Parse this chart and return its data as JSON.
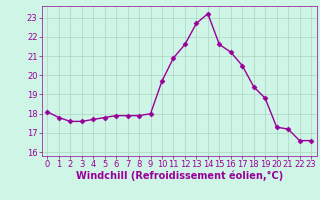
{
  "x": [
    0,
    1,
    2,
    3,
    4,
    5,
    6,
    7,
    8,
    9,
    10,
    11,
    12,
    13,
    14,
    15,
    16,
    17,
    18,
    19,
    20,
    21,
    22,
    23
  ],
  "y": [
    18.1,
    17.8,
    17.6,
    17.6,
    17.7,
    17.8,
    17.9,
    17.9,
    17.9,
    18.0,
    19.7,
    20.9,
    21.6,
    22.7,
    23.2,
    21.6,
    21.2,
    20.5,
    19.4,
    18.8,
    17.3,
    17.2,
    16.6,
    16.6
  ],
  "line_color": "#990099",
  "marker": "D",
  "marker_size": 2.5,
  "bg_color": "#cff5e7",
  "grid_color": "#aad4c0",
  "xlabel": "Windchill (Refroidissement éolien,°C)",
  "ylim": [
    15.8,
    23.6
  ],
  "yticks": [
    16,
    17,
    18,
    19,
    20,
    21,
    22,
    23
  ],
  "xticks": [
    0,
    1,
    2,
    3,
    4,
    5,
    6,
    7,
    8,
    9,
    10,
    11,
    12,
    13,
    14,
    15,
    16,
    17,
    18,
    19,
    20,
    21,
    22,
    23
  ],
  "tick_color": "#990099",
  "tick_fontsize": 6,
  "xlabel_fontsize": 7,
  "line_width": 1.0
}
